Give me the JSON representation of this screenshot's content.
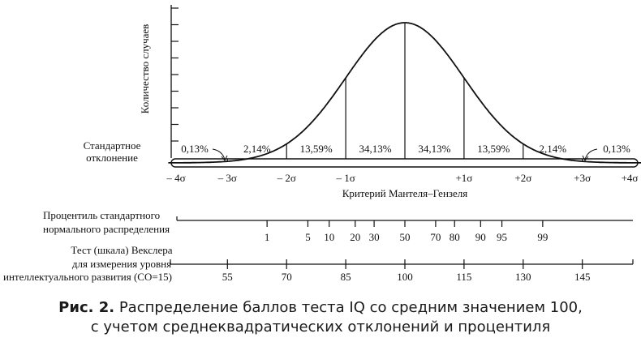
{
  "chart_data": {
    "type": "area",
    "title": "",
    "ylabel": "Количество случаев",
    "xlabel": "Критерий Мантеля–Гензеля",
    "row_label_sd": "Стандартное\nотклонение",
    "x_ticks": [
      "– 4σ",
      "– 3σ",
      "– 2σ",
      "– 1σ",
      "+1σ",
      "+2σ",
      "+3σ",
      "+4σ"
    ],
    "x_tick_values": [
      -4,
      -3,
      -2,
      -1,
      1,
      2,
      3,
      4
    ],
    "xlim": [
      -4,
      4
    ],
    "curve": "normal density, mean 0, sd 1",
    "band_percents": [
      {
        "from": -4,
        "to": -3,
        "label": "0,13%"
      },
      {
        "from": -3,
        "to": -2,
        "label": "2,14%"
      },
      {
        "from": -2,
        "to": -1,
        "label": "13,59%"
      },
      {
        "from": -1,
        "to": 0,
        "label": "34,13%"
      },
      {
        "from": 0,
        "to": 1,
        "label": "34,13%"
      },
      {
        "from": 1,
        "to": 2,
        "label": "13,59%"
      },
      {
        "from": 2,
        "to": 3,
        "label": "2,14%"
      },
      {
        "from": 3,
        "to": 4,
        "label": "0,13%"
      }
    ],
    "percentile_scale": {
      "label": "Процентиль стандартного\nнормального распределения",
      "ticks": [
        {
          "z": -2.33,
          "label": "1"
        },
        {
          "z": -1.64,
          "label": "5"
        },
        {
          "z": -1.28,
          "label": "10"
        },
        {
          "z": -0.84,
          "label": "20"
        },
        {
          "z": -0.52,
          "label": "30"
        },
        {
          "z": 0.0,
          "label": "50"
        },
        {
          "z": 0.52,
          "label": "70"
        },
        {
          "z": 0.84,
          "label": "80"
        },
        {
          "z": 1.28,
          "label": "90"
        },
        {
          "z": 1.64,
          "label": "95"
        },
        {
          "z": 2.33,
          "label": "99"
        }
      ]
    },
    "wechsler_scale": {
      "label": "Тест (шкала) Векслера\nдля измерения уровня\nинтеллектуального развития (СО=15)",
      "ticks": [
        {
          "z": -3,
          "label": "55"
        },
        {
          "z": -2,
          "label": "70"
        },
        {
          "z": -1,
          "label": "85"
        },
        {
          "z": 0,
          "label": "100"
        },
        {
          "z": 1,
          "label": "115"
        },
        {
          "z": 2,
          "label": "130"
        },
        {
          "z": 3,
          "label": "145"
        }
      ]
    },
    "y_axis_ticks": 9
  },
  "caption": {
    "prefix": "Рис. 2.",
    "line1": " Распределение баллов теста IQ со средним значением 100,",
    "line2": "с учетом среднеквадратических отклонений и процентиля"
  }
}
